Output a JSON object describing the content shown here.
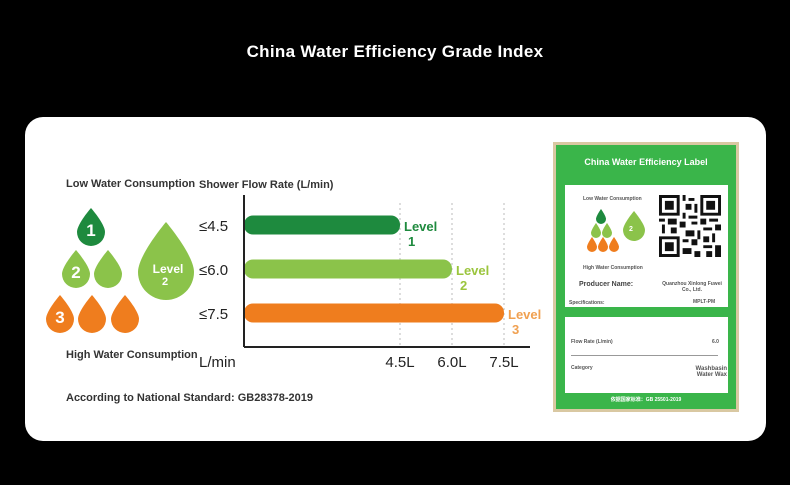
{
  "title": "China Water Efficiency Grade Index",
  "legend": {
    "low_label": "Low Water Consumption",
    "high_label": "High Water Consumption",
    "standard": "According to National Standard: GB28378-2019",
    "drops": [
      {
        "number": "1",
        "color": "#1e8a3e"
      },
      {
        "number": "2",
        "color": "#8bc34a"
      },
      {
        "number": "3",
        "color": "#ef7d1e"
      }
    ],
    "big_drop_label": "Level",
    "big_drop_number": "2"
  },
  "chart_data": {
    "type": "bar",
    "orientation": "horizontal",
    "title": "Shower Flow Rate (L/min)",
    "xlabel": "L/min",
    "x_ticks": [
      "4.5L",
      "6.0L",
      "7.5L"
    ],
    "x_tick_values": [
      4.5,
      6.0,
      7.5
    ],
    "xlim": [
      0,
      8.25
    ],
    "categories": [
      "≤4.5",
      "≤6.0",
      "≤7.5"
    ],
    "values": [
      4.5,
      6.0,
      7.5
    ],
    "bar_labels": [
      [
        "Level",
        "1"
      ],
      [
        "Level",
        "2"
      ],
      [
        "Level",
        "3"
      ]
    ],
    "colors": [
      "#1e8a3e",
      "#8bc34a",
      "#ef7d1e"
    ],
    "label_colors": [
      "#1e8a3e",
      "#9bc53d",
      "#f0a050"
    ],
    "grid": "dashed vertical at ticks"
  },
  "energy_label": {
    "title": "China Water Efficiency Label",
    "low": "Low Water Consumption",
    "high": "High Water Consumption",
    "producer_key": "Producer Name:",
    "producer_val": "Quanzhou Xinlong Fuwei Co., Ltd.",
    "spec_key": "Specifications:",
    "spec_val": "MPLT-PM",
    "flow_key": "Flow Rate (L/min)",
    "flow_val": "6.0",
    "category_key": "Category",
    "category_val": "Washbasin Water Wax",
    "badge_number": "2",
    "footer": "依据国家标准：GB 25501-2019"
  }
}
